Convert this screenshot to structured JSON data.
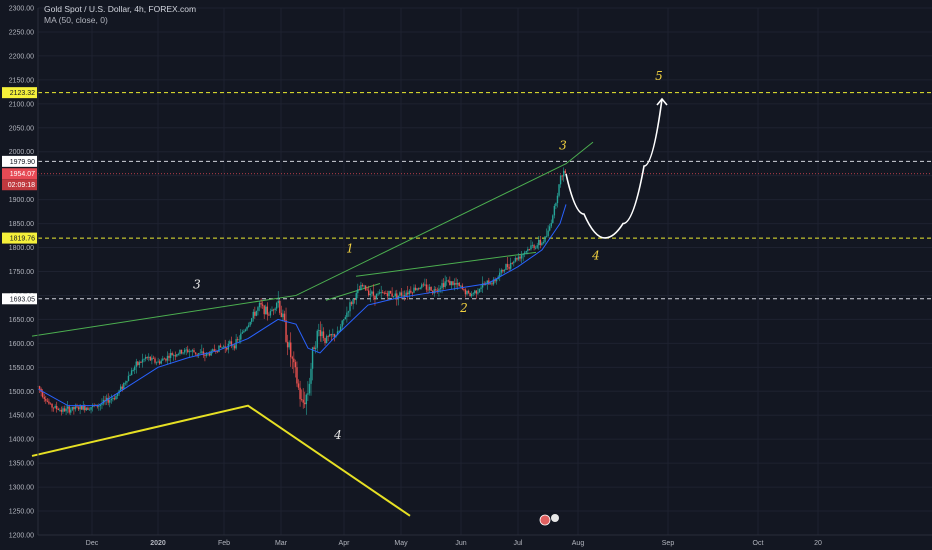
{
  "header": {
    "symbol": "Gold Spot / U.S. Dollar, 4h, FOREX.com",
    "indicator": "MA (50, close, 0)"
  },
  "colors": {
    "background": "#131722",
    "grid": "#1e2230",
    "axis_text": "#b2b5be",
    "candle_up": "#26a69a",
    "candle_down": "#ef5350",
    "ma_line": "#2962ff",
    "trend_green": "#4caf50",
    "yellow_line": "#e6e024",
    "wave_label": "#f0d040",
    "current_price": "#e64a55"
  },
  "chart_data": {
    "type": "candlestick",
    "y_axis": {
      "min": 1200,
      "max": 2300,
      "ticks": [
        "1200.00",
        "1250.00",
        "1300.00",
        "1350.00",
        "1400.00",
        "1450.00",
        "1500.00",
        "1550.00",
        "1600.00",
        "1650.00",
        "1700.00",
        "1750.00",
        "1800.00",
        "1850.00",
        "1900.00",
        "1950.00",
        "2000.00",
        "2050.00",
        "2100.00",
        "2150.00",
        "2200.00",
        "2250.00",
        "2300.00"
      ],
      "tick_values": [
        1200,
        1250,
        1300,
        1350,
        1400,
        1450,
        1500,
        1550,
        1600,
        1650,
        1700,
        1750,
        1800,
        1850,
        1900,
        1950,
        2000,
        2050,
        2100,
        2150,
        2200,
        2250,
        2300
      ]
    },
    "x_axis": {
      "labels": [
        {
          "text": "Dec",
          "pos": 0.09
        },
        {
          "text": "2020",
          "pos": 0.2,
          "bold": true
        },
        {
          "text": "Feb",
          "pos": 0.31
        },
        {
          "text": "Mar",
          "pos": 0.405
        },
        {
          "text": "Apr",
          "pos": 0.51
        },
        {
          "text": "May",
          "pos": 0.605
        },
        {
          "text": "Jun",
          "pos": 0.705
        },
        {
          "text": "Jul",
          "pos": 0.8
        },
        {
          "text": "Aug",
          "pos": 0.9
        },
        {
          "text": "Sep",
          "pos": 1.05
        },
        {
          "text": "Oct",
          "pos": 1.2
        },
        {
          "text": "20",
          "pos": 1.3
        }
      ]
    },
    "price_path": [
      [
        0.0,
        1510
      ],
      [
        0.02,
        1470
      ],
      [
        0.04,
        1460
      ],
      [
        0.07,
        1465
      ],
      [
        0.1,
        1470
      ],
      [
        0.13,
        1490
      ],
      [
        0.16,
        1550
      ],
      [
        0.18,
        1570
      ],
      [
        0.2,
        1560
      ],
      [
        0.22,
        1575
      ],
      [
        0.25,
        1585
      ],
      [
        0.28,
        1575
      ],
      [
        0.3,
        1590
      ],
      [
        0.33,
        1600
      ],
      [
        0.35,
        1640
      ],
      [
        0.37,
        1680
      ],
      [
        0.385,
        1660
      ],
      [
        0.4,
        1690
      ],
      [
        0.41,
        1640
      ],
      [
        0.42,
        1580
      ],
      [
        0.43,
        1530
      ],
      [
        0.44,
        1470
      ],
      [
        0.45,
        1500
      ],
      [
        0.46,
        1600
      ],
      [
        0.47,
        1630
      ],
      [
        0.48,
        1610
      ],
      [
        0.5,
        1620
      ],
      [
        0.52,
        1680
      ],
      [
        0.54,
        1720
      ],
      [
        0.56,
        1700
      ],
      [
        0.58,
        1705
      ],
      [
        0.6,
        1700
      ],
      [
        0.62,
        1710
      ],
      [
        0.64,
        1720
      ],
      [
        0.66,
        1710
      ],
      [
        0.68,
        1730
      ],
      [
        0.7,
        1720
      ],
      [
        0.72,
        1700
      ],
      [
        0.74,
        1720
      ],
      [
        0.76,
        1730
      ],
      [
        0.78,
        1760
      ],
      [
        0.8,
        1780
      ],
      [
        0.82,
        1800
      ],
      [
        0.84,
        1810
      ],
      [
        0.85,
        1830
      ],
      [
        0.86,
        1880
      ],
      [
        0.87,
        1940
      ],
      [
        0.875,
        1960
      ],
      [
        0.88,
        1954
      ]
    ],
    "ma_path": [
      [
        0.0,
        1505
      ],
      [
        0.05,
        1470
      ],
      [
        0.1,
        1470
      ],
      [
        0.15,
        1510
      ],
      [
        0.2,
        1550
      ],
      [
        0.25,
        1570
      ],
      [
        0.3,
        1585
      ],
      [
        0.35,
        1610
      ],
      [
        0.4,
        1650
      ],
      [
        0.43,
        1640
      ],
      [
        0.45,
        1590
      ],
      [
        0.47,
        1580
      ],
      [
        0.5,
        1620
      ],
      [
        0.55,
        1680
      ],
      [
        0.6,
        1695
      ],
      [
        0.65,
        1705
      ],
      [
        0.7,
        1715
      ],
      [
        0.75,
        1725
      ],
      [
        0.8,
        1760
      ],
      [
        0.84,
        1795
      ],
      [
        0.87,
        1850
      ],
      [
        0.88,
        1890
      ]
    ],
    "trendlines": [
      {
        "name": "rising-channel-top",
        "color": "green",
        "points": [
          [
            -0.01,
            1615
          ],
          [
            0.43,
            1700
          ],
          [
            0.88,
            1975
          ],
          [
            0.925,
            2020
          ]
        ]
      },
      {
        "name": "resistance-line",
        "color": "green",
        "points": [
          [
            0.53,
            1740
          ],
          [
            0.83,
            1790
          ]
        ]
      },
      {
        "name": "support-a",
        "color": "green",
        "points": [
          [
            0.48,
            1690
          ],
          [
            0.57,
            1725
          ]
        ]
      }
    ],
    "yellow_lines": [
      {
        "points": [
          [
            -0.01,
            1365
          ],
          [
            0.35,
            1470
          ],
          [
            0.62,
            1240
          ]
        ]
      }
    ],
    "horizontal_levels": [
      {
        "value": 2123.32,
        "label": "2123.32",
        "style": "yellow-dashed"
      },
      {
        "value": 1979.9,
        "label": "1979.90",
        "style": "white-dashed"
      },
      {
        "value": 1954.07,
        "label": "1954.07",
        "style": "current"
      },
      {
        "value": 1819.76,
        "label": "1819.76",
        "style": "yellow-dashed"
      },
      {
        "value": 1693.05,
        "label": "1693.05",
        "style": "white-dashed"
      }
    ],
    "countdown": "02:09:18",
    "projection": [
      [
        0.88,
        1954
      ],
      [
        0.91,
        1870
      ],
      [
        0.945,
        1820
      ],
      [
        0.975,
        1850
      ],
      [
        1.01,
        1970
      ],
      [
        1.04,
        2110
      ]
    ],
    "wave_labels": [
      {
        "text": "3",
        "x": 0.265,
        "y": 1715,
        "color": "white"
      },
      {
        "text": "1",
        "x": 0.52,
        "y": 1790,
        "color": "yellow"
      },
      {
        "text": "2",
        "x": 0.71,
        "y": 1665,
        "color": "yellow"
      },
      {
        "text": "3",
        "x": 0.875,
        "y": 2005,
        "color": "yellow"
      },
      {
        "text": "4",
        "x": 0.93,
        "y": 1775,
        "color": "yellow"
      },
      {
        "text": "5",
        "x": 1.035,
        "y": 2150,
        "color": "yellow"
      },
      {
        "text": "4",
        "x": 0.5,
        "y": 1400,
        "color": "white"
      }
    ]
  }
}
